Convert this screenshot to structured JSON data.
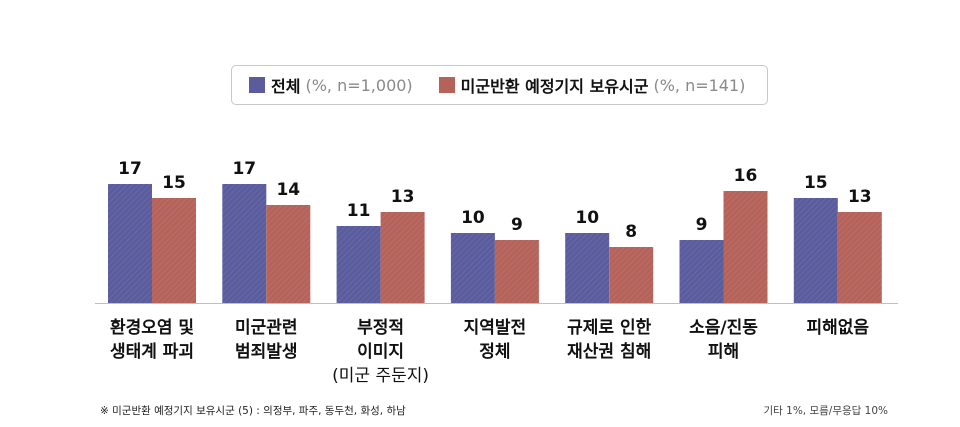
{
  "legend": {
    "total_label": "전체",
    "total_note": "(%, n=1,000)",
    "base_label": "미군반환 예정기지 보유시군",
    "base_note": "(%, n=141)"
  },
  "chart_data": {
    "type": "bar",
    "title": "",
    "categories": [
      [
        "환경오염 및",
        "생태계 파괴"
      ],
      [
        "미군관련",
        "범죄발생"
      ],
      [
        "부정적",
        "이미지",
        "(미군 주둔지)"
      ],
      [
        "지역발전",
        "정체"
      ],
      [
        "규제로 인한",
        "재산권 침해"
      ],
      [
        "소음/진동",
        "피해"
      ],
      [
        "피해없음"
      ]
    ],
    "series": [
      {
        "name": "전체",
        "values": [
          17,
          17,
          11,
          10,
          10,
          9,
          15
        ]
      },
      {
        "name": "미군반환 예정기지 보유시군",
        "values": [
          15,
          14,
          13,
          9,
          8,
          16,
          13
        ]
      }
    ],
    "ylim": [
      0,
      20
    ],
    "xlabel": "",
    "ylabel": "",
    "grid": false,
    "legend_position": "top"
  },
  "colors": {
    "series_total": "#5a5c9e",
    "series_base": "#b5625a",
    "axis": "#c0c0c0"
  },
  "footnote": "※ 미군반환 예정기지 보유시군 (5) : 의정부, 파주, 동두천, 화성, 하남",
  "footnote_right": "기타 1%, 모름/무응답 10%"
}
